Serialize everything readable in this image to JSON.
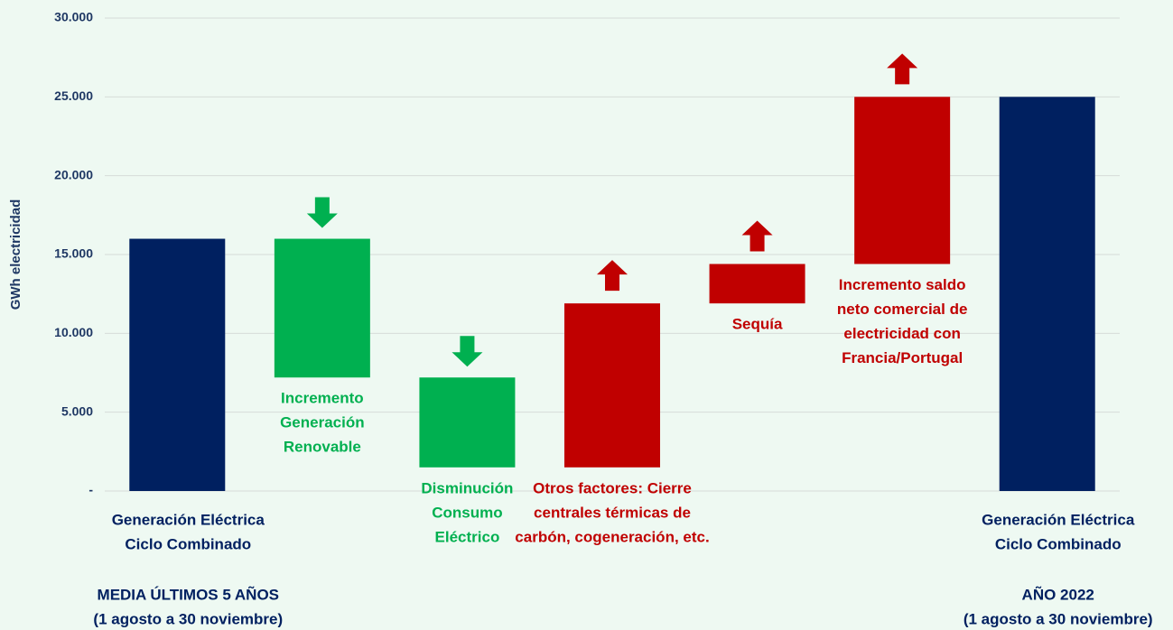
{
  "chart_data": {
    "type": "waterfall",
    "y_axis_label": "GWh electricidad",
    "categories": [
      [
        "Generación Eléctrica",
        "Ciclo Combinado"
      ],
      [
        "Incremento",
        "Generación",
        "Renovable"
      ],
      [
        "Disminución",
        "Consumo",
        "Eléctrico"
      ],
      [
        "Otros factores: Cierre",
        "centrales térmicas de",
        "carbón, cogeneración, etc."
      ],
      [
        "Sequía"
      ],
      [
        "Incremento saldo",
        "neto comercial de",
        "electricidad con",
        "Francia/Portugal"
      ],
      [
        "Generación Eléctrica",
        "Ciclo Combinado"
      ]
    ],
    "measure": [
      "absolute",
      "relative",
      "relative",
      "relative",
      "relative",
      "relative",
      "total"
    ],
    "values": [
      16000,
      -8800,
      -5700,
      10400,
      2500,
      10600,
      25000
    ],
    "colors": [
      "#002060",
      "#00b050",
      "#00b050",
      "#c00000",
      "#c00000",
      "#c00000",
      "#002060"
    ],
    "period_labels": [
      [
        "MEDIA ÚLTIMOS 5 AÑOS",
        "(1 agosto a 30 noviembre)"
      ],
      [
        "AÑO 2022",
        "(1 agosto a 30 noviembre)"
      ]
    ],
    "ylim": [
      0,
      30000
    ],
    "yticks": [
      {
        "value": 0,
        "label": "-"
      },
      {
        "value": 5000,
        "label": "5.000"
      },
      {
        "value": 10000,
        "label": "10.000"
      },
      {
        "value": 15000,
        "label": "15.000"
      },
      {
        "value": 20000,
        "label": "20.000"
      },
      {
        "value": 25000,
        "label": "25.000"
      },
      {
        "value": 30000,
        "label": "30.000"
      }
    ],
    "grid": true
  }
}
